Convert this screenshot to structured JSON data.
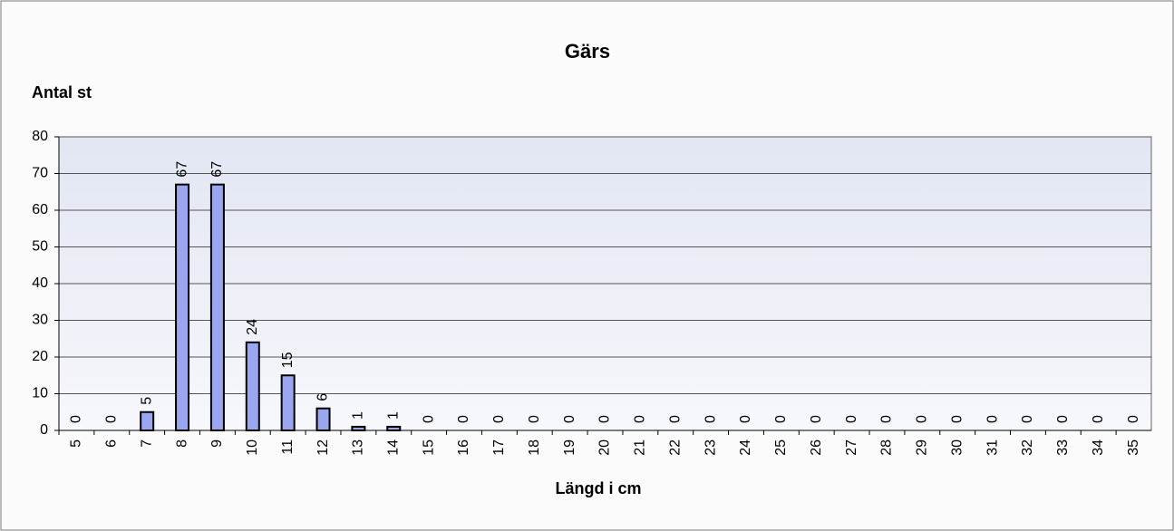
{
  "chart_data": {
    "type": "bar",
    "title": "Gärs",
    "y_label": "Antal st",
    "x_label": "Längd i cm",
    "categories": [
      "5",
      "6",
      "7",
      "8",
      "9",
      "10",
      "11",
      "12",
      "13",
      "14",
      "15",
      "16",
      "17",
      "18",
      "19",
      "20",
      "21",
      "22",
      "23",
      "24",
      "25",
      "26",
      "27",
      "28",
      "29",
      "30",
      "31",
      "32",
      "33",
      "34",
      "35"
    ],
    "values": [
      0,
      0,
      5,
      67,
      67,
      24,
      15,
      6,
      1,
      1,
      0,
      0,
      0,
      0,
      0,
      0,
      0,
      0,
      0,
      0,
      0,
      0,
      0,
      0,
      0,
      0,
      0,
      0,
      0,
      0,
      0
    ],
    "color": "#9aa6f0",
    "ylim": [
      0,
      80
    ],
    "yticks": [
      0,
      10,
      20,
      30,
      40,
      50,
      60,
      70,
      80
    ],
    "grid": true
  }
}
